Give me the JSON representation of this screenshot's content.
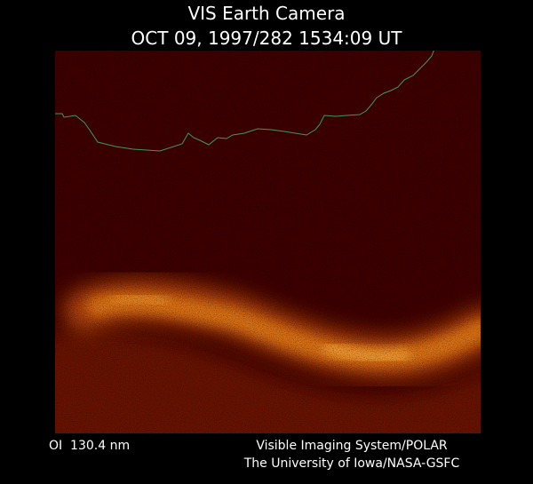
{
  "header": {
    "title": "VIS Earth Camera",
    "subtitle": "OCT 09, 1997/282 1534:09 UT"
  },
  "footer": {
    "wavelength": "OI  130.4 nm",
    "credit_lines": [
      "Visible Imaging System/POLAR",
      "The University of Iowa/NASA-GSFC"
    ]
  }
}
